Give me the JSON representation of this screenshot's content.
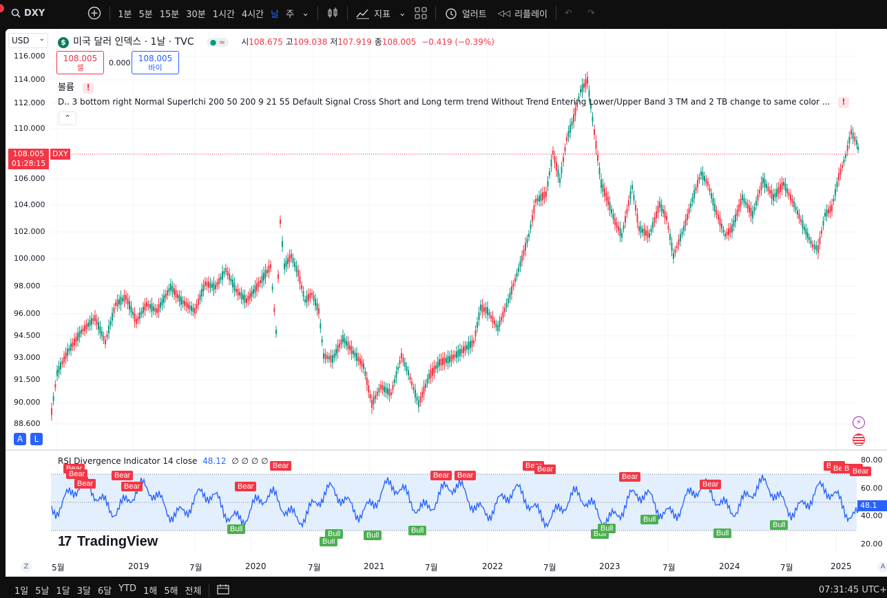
{
  "topbar": {
    "symbol": "DXY",
    "intervals": [
      "1분",
      "5분",
      "15분",
      "30분",
      "1시간",
      "4시간",
      "날",
      "주"
    ],
    "active_interval": "날",
    "indicators_label": "지표",
    "alert_label": "얼러트",
    "replay_label": "리플레이"
  },
  "legend": {
    "currency": "USD",
    "title": "미국 달러 인덱스 · 1날 · TVC",
    "open_label": "시",
    "open": "108.675",
    "high_label": "고",
    "high": "109.038",
    "low_label": "저",
    "low": "107.919",
    "close_label": "종",
    "close": "108.005",
    "change": "−0.419 (−0.39%)",
    "sell_price": "108.005",
    "sell_label": "셀",
    "spread": "0.000",
    "buy_price": "108.005",
    "buy_label": "바이",
    "volume_label": "볼륨",
    "indicator_text": "D.. 3 bottom right Normal SuperIchi 200 50 200 9 21 55 Default Signal Cross Short and Long term trend Without Trend Entering Lower/Upper Band 3 TM and 2 TB change to same color ..."
  },
  "price_axis": [
    "116.000",
    "114.000",
    "112.000",
    "110.000",
    "106.000",
    "104.000",
    "102.000",
    "100.000",
    "98.000",
    "96.000",
    "94.500",
    "93.000",
    "91.500",
    "90.000",
    "88.600"
  ],
  "last_price": {
    "value": "108.005",
    "symbol": "DXY",
    "countdown": "01:28:15"
  },
  "rsi": {
    "title": "RSI Divergence Indicator 14 close",
    "value": "48.12",
    "extras": "∅ ∅ ∅ ∅",
    "axis": [
      "80.00",
      "60.00",
      "40.00",
      "20.00"
    ],
    "current": "48.1",
    "bear_label": "Bear",
    "bull_label": "Bull"
  },
  "time_axis": [
    "5월",
    "2019",
    "7월",
    "2020",
    "7월",
    "2021",
    "7월",
    "2022",
    "7월",
    "2023",
    "7월",
    "2024",
    "7월",
    "2025"
  ],
  "watermark": "TradingView",
  "bottombar": {
    "ranges": [
      "1일",
      "5날",
      "1달",
      "3달",
      "6달",
      "YTD",
      "1해",
      "5해",
      "전체"
    ],
    "clock": "07:31:45 UTC+"
  },
  "colors": {
    "up": "#089981",
    "down": "#f23645",
    "rsi": "#2962ff",
    "band": "#e3effd"
  }
}
